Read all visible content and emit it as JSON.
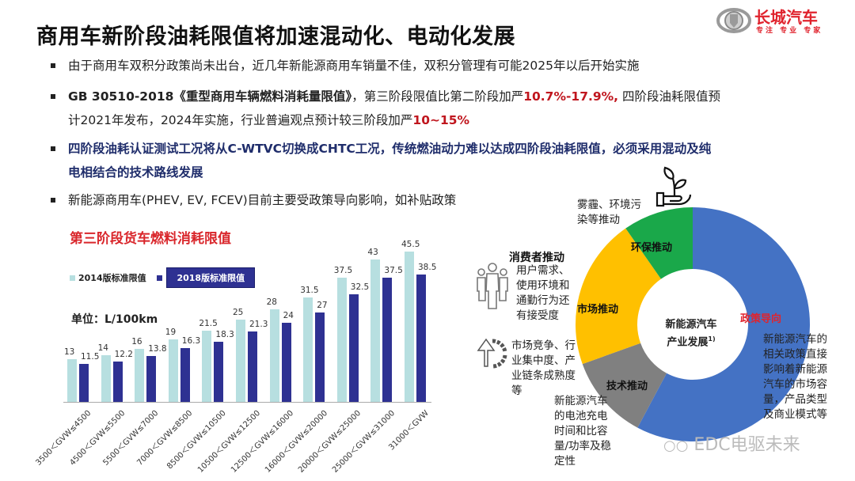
{
  "header": {
    "title": "商用车新阶段油耗限值将加速混动化、电动化发展",
    "logo_text": "长城汽车",
    "logo_slogan": "专注 专业 专家"
  },
  "bullets": [
    {
      "text": "由于商用车双积分政策尚未出台，近几年新能源商用车销量不佳，双积分管理有可能2025年以后开始实施"
    },
    {
      "line1_bold": "GB 30510-2018《重型商用车辆燃料消耗量限值》",
      "line1_mid": "，第三阶段限值比第二阶段加严",
      "line1_red": "10.7%-17.9%,",
      "line1_end": " 四阶段油耗限值预",
      "line2": "计2021年发布，2024年实施，行业普遍观点预计较三阶段加严",
      "line2_red": "10~15%"
    },
    {
      "line1": "四阶段油耗认证测试工况将从C-WTVC切换成CHTC工况，传统燃油动力难以达成四阶段油耗限值，必须采用混动及纯",
      "line2": "电相结合的技术路线发展"
    },
    {
      "text": "新能源商用车(PHEV, EV, FCEV)目前主要受政策导向影响，如补贴政策"
    }
  ],
  "chart_data": [
    {
      "type": "bar",
      "title": "第三阶段货车燃料消耗限值",
      "ylabel": "单位：L/100km",
      "xlabel": "",
      "categories": [
        "3500＜GVW≤4500",
        "4500＜GVW≤5500",
        "5500＜GVW≤7000",
        "7000＜GVW≤8500",
        "8500＜GVW≤10500",
        "10500＜GVW≤12500",
        "12500＜GVW≤16000",
        "16000＜GVW≤20000",
        "20000＜GVW≤25000",
        "25000＜GVW≤31000",
        "31000＜GVW"
      ],
      "series": [
        {
          "name": "2014版标准限值",
          "color": "#b7dfe0",
          "values": [
            13,
            14,
            16,
            19,
            21.5,
            25,
            28,
            31.5,
            37.5,
            43,
            45.5
          ]
        },
        {
          "name": "2018版标准限值",
          "color": "#2e3192",
          "values": [
            11.5,
            12.2,
            13.8,
            16.3,
            18.3,
            21.3,
            24,
            27,
            32.5,
            37.5,
            38.5
          ]
        }
      ],
      "grid": false,
      "legend_position": "top-left",
      "ylim": [
        0,
        50
      ]
    },
    {
      "type": "pie",
      "title": "新能源汽车产业发展1)",
      "hole": true,
      "segments": [
        {
          "label": "政策导向",
          "share": 57.8,
          "color": "#4472c4",
          "label_color": "#e0232d"
        },
        {
          "label": "技术推动",
          "share": 11.7,
          "color": "#808080",
          "label_color": "#111111"
        },
        {
          "label": "市场推动",
          "share": 20.8,
          "color": "#ffc000",
          "label_color": "#111111"
        },
        {
          "label": "环保推动",
          "share": 9.7,
          "color": "#1aa84a",
          "label_color": "#111111"
        }
      ]
    }
  ],
  "donut": {
    "center_line1": "新能源汽车",
    "center_line2": "产业发展",
    "center_sup": "1)",
    "seg_policy": "政策导向",
    "seg_tech": "技术推动",
    "seg_market": "市场推动",
    "seg_env": "环保推动",
    "desc_env": [
      "雾霾、环境污",
      "染等推动"
    ],
    "consumer_title": "消费者推动",
    "desc_consumer": [
      "用户需求、",
      "使用环境和",
      "通勤行为还",
      "有接受度"
    ],
    "desc_market": [
      "市场竞争、行",
      "业集中度、产",
      "业链条成熟度",
      "等"
    ],
    "desc_tech": [
      "新能源汽车",
      "的电池充电",
      "时间和比容",
      "量/功率及稳",
      "定性"
    ],
    "desc_policy": [
      "新能源汽车的",
      "相关政策直接",
      "影响着新能源",
      "汽车的市场容",
      "量，产品类型",
      "及商业模式等"
    ]
  },
  "watermark": "EDC电驱未来"
}
